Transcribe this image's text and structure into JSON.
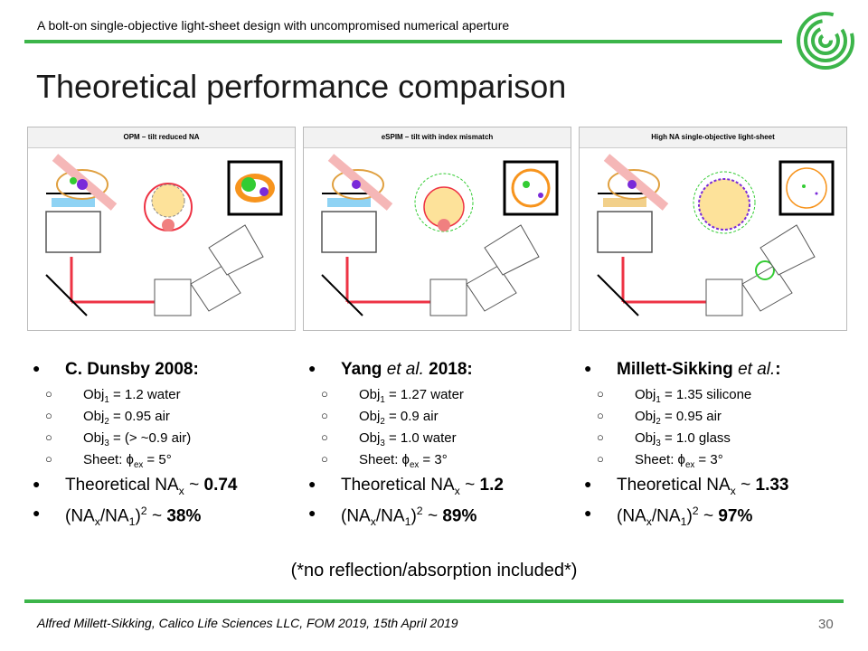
{
  "header": {
    "top_title": "A bolt-on single-objective light-sheet design with uncompromised numerical aperture",
    "heading": "Theoretical performance comparison"
  },
  "panels": [
    {
      "title": "OPM – tilt reduced NA"
    },
    {
      "title": "eSPIM – tilt with index mismatch"
    },
    {
      "title": "High NA single-objective light-sheet"
    }
  ],
  "columns": [
    {
      "author": "C. Dunsby 2008:",
      "obj1": "Obj",
      "obj1_val": " = 1.2 water",
      "obj2_val": " = 0.95 air",
      "obj3_val": " = (> ~0.9 air)",
      "sheet_val": " = 5°",
      "na_val": "0.74",
      "ratio_val": "38%"
    },
    {
      "author_a": "Yang ",
      "author_b": "et al.",
      "author_c": " 2018:",
      "obj1_val": " = 1.27 water",
      "obj2_val": " = 0.9 air",
      "obj3_val": " = 1.0 water",
      "sheet_val": " = 3°",
      "na_val": "1.2",
      "ratio_val": "89%"
    },
    {
      "author_a": "Millett-Sikking ",
      "author_b": "et al.",
      "author_c": ":",
      "obj1_val": " = 1.35 silicone",
      "obj2_val": " = 0.95 air",
      "obj3_val": " = 1.0 glass",
      "sheet_val": " = 3°",
      "na_val": "1.33",
      "ratio_val": "97%"
    }
  ],
  "labels": {
    "obj": "Obj",
    "sheet": "Sheet: ",
    "phi": "ϕ",
    "ex": "ex",
    "theoretical": "Theoretical NA",
    "x": "x",
    "tilde": " ~ ",
    "ratio_open": "(NA",
    "slash": "/NA",
    "one": "1",
    "two": "2",
    "three": "3",
    "ratio_close": ")",
    "sq": "2"
  },
  "note": "(*no reflection/absorption included*)",
  "footer": {
    "text": "Alfred Millett-Sikking, Calico Life Sciences LLC, FOM 2019, 15th April 2019",
    "page": "30"
  },
  "colors": {
    "accent": "#3cb54a"
  }
}
